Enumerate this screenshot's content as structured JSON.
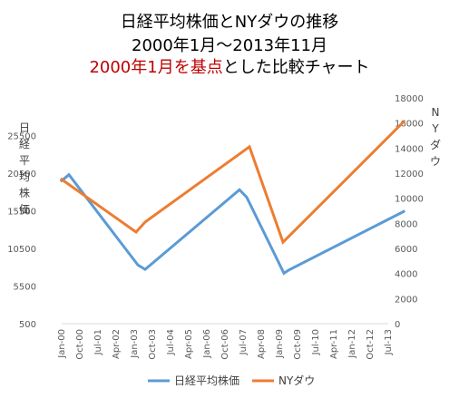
{
  "chart_data": {
    "type": "line",
    "title_lines": [
      {
        "text": "日経平均株価とNYダウの推移",
        "color": "#000000"
      },
      {
        "text": "2000年1月～2013年11月",
        "color": "#000000"
      },
      {
        "segments": [
          {
            "text": "2000年1月を基点",
            "color": "#c00000"
          },
          {
            "text": "とした比較チャート",
            "color": "#000000"
          }
        ]
      }
    ],
    "ylabel_left": "日経平均株価",
    "ylabel_right": "NYダウ",
    "x_ticks": [
      "Jan-00",
      "Oct-00",
      "Jul-01",
      "Apr-02",
      "Jan-03",
      "Oct-03",
      "Jul-04",
      "Apr-05",
      "Jan-06",
      "Oct-06",
      "Jul-07",
      "Apr-08",
      "Jan-09",
      "Oct-09",
      "Jul-10",
      "Apr-11",
      "Jan-12",
      "Oct-12",
      "Jul-13"
    ],
    "ylim_left": [
      500,
      30500
    ],
    "yticks_left": [
      500,
      5500,
      10500,
      15500,
      20500,
      25500
    ],
    "ylim_right": [
      0,
      18000
    ],
    "yticks_right": [
      0,
      2000,
      4000,
      6000,
      8000,
      10000,
      12000,
      14000,
      16000,
      18000
    ],
    "grid": false,
    "legend_position": "bottom",
    "series": [
      {
        "name": "日経平均株価",
        "axis": "left",
        "color": "#5b9bd5",
        "points": [
          [
            0,
            19500
          ],
          [
            0.4,
            20300
          ],
          [
            4.2,
            8300
          ],
          [
            4.6,
            7700
          ],
          [
            9.8,
            18300
          ],
          [
            10.2,
            17300
          ],
          [
            12.25,
            7200
          ],
          [
            12.5,
            7600
          ],
          [
            18.85,
            15400
          ]
        ]
      },
      {
        "name": "NYダウ",
        "axis": "right",
        "color": "#ed7d31",
        "points": [
          [
            0,
            11500
          ],
          [
            4.1,
            7300
          ],
          [
            4.6,
            8100
          ],
          [
            10.35,
            14100
          ],
          [
            12.2,
            6500
          ],
          [
            18.85,
            16100
          ]
        ]
      }
    ]
  }
}
